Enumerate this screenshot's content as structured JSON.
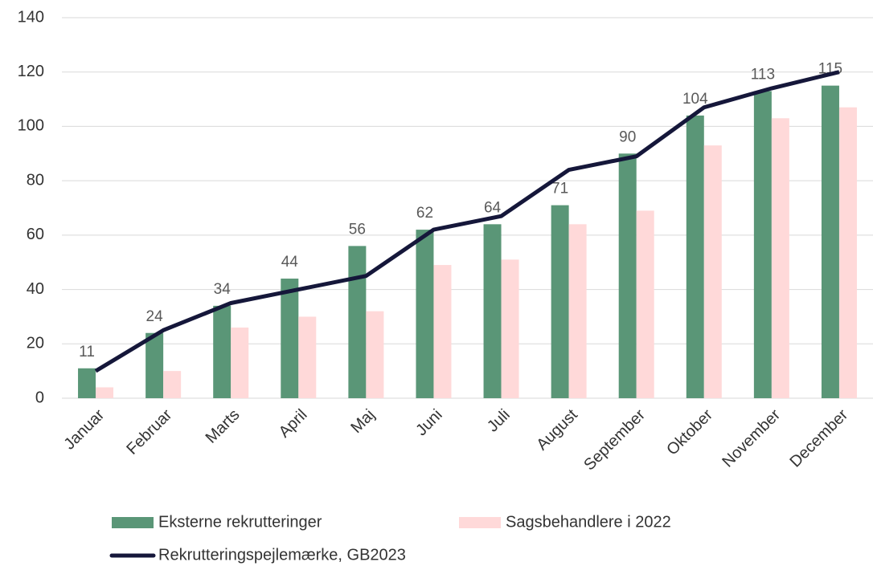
{
  "chart_data": {
    "type": "bar",
    "categories": [
      "Januar",
      "Februar",
      "Marts",
      "April",
      "Maj",
      "Juni",
      "Juli",
      "August",
      "September",
      "Oktober",
      "November",
      "December"
    ],
    "series": [
      {
        "name": "Eksterne rekrutteringer",
        "type": "bar",
        "color": "#5a9677",
        "data_labels": true,
        "values": [
          11,
          24,
          34,
          44,
          56,
          62,
          64,
          71,
          90,
          104,
          113,
          115
        ]
      },
      {
        "name": "Sagsbehandlere i 2022",
        "type": "bar",
        "color": "#ffd9d9",
        "data_labels": false,
        "values": [
          4,
          10,
          26,
          30,
          32,
          49,
          51,
          64,
          69,
          93,
          103,
          107
        ]
      },
      {
        "name": "Rekrutteringspejlemærke, GB2023",
        "type": "line",
        "color": "#15173a",
        "data_labels": false,
        "values": [
          10,
          25,
          35,
          40,
          45,
          62,
          67,
          84,
          89,
          107,
          114,
          120
        ]
      }
    ],
    "ylim": [
      0,
      140
    ],
    "yticks": [
      0,
      20,
      40,
      60,
      80,
      100,
      120,
      140
    ],
    "grid": true,
    "legend": "bottom"
  }
}
